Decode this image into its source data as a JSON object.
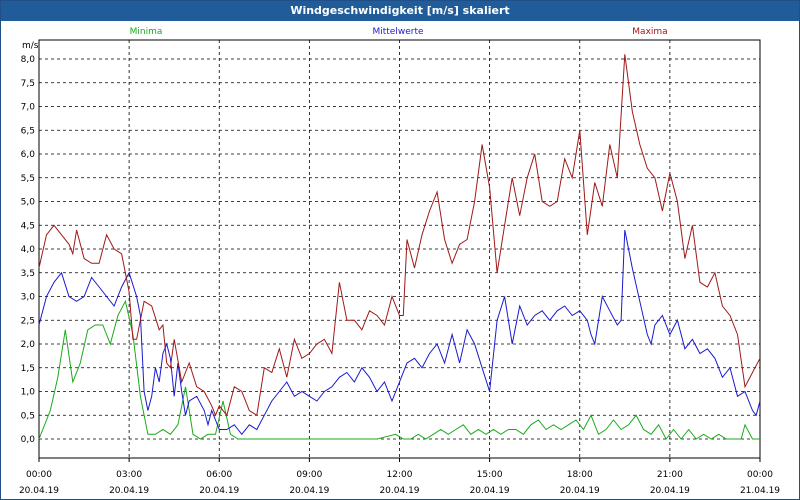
{
  "window": {
    "title": "Windgeschwindigkeit [m/s] skaliert"
  },
  "chart_data": {
    "type": "line",
    "title": "Windgeschwindigkeit [m/s] skaliert",
    "ylabel": "m/s",
    "ylim": [
      -0.4,
      8.4
    ],
    "xlim": [
      0,
      192
    ],
    "grid": true,
    "legend_placement": "top",
    "y_ticks": [
      "0,0",
      "0,5",
      "1,0",
      "1,5",
      "2,0",
      "2,5",
      "3,0",
      "3,5",
      "4,0",
      "4,5",
      "5,0",
      "5,5",
      "6,0",
      "6,5",
      "7,0",
      "7,5",
      "8,0"
    ],
    "x_ticks": [
      {
        "time": "00:00",
        "date": "20.04.19"
      },
      {
        "time": "03:00",
        "date": "20.04.19"
      },
      {
        "time": "06:00",
        "date": "20.04.19"
      },
      {
        "time": "09:00",
        "date": "20.04.19"
      },
      {
        "time": "12:00",
        "date": "20.04.19"
      },
      {
        "time": "15:00",
        "date": "20.04.19"
      },
      {
        "time": "18:00",
        "date": "20.04.19"
      },
      {
        "time": "21:00",
        "date": "20.04.19"
      },
      {
        "time": "00:00",
        "date": "21.04.19"
      }
    ],
    "series": [
      {
        "name": "Minima",
        "color": "#1aaa1a",
        "points": [
          [
            0,
            0.0
          ],
          [
            3,
            0.6
          ],
          [
            5,
            1.3
          ],
          [
            7,
            2.3
          ],
          [
            9,
            1.2
          ],
          [
            11,
            1.6
          ],
          [
            13,
            2.3
          ],
          [
            15,
            2.4
          ],
          [
            17,
            2.4
          ],
          [
            19,
            2.0
          ],
          [
            21,
            2.6
          ],
          [
            23,
            2.9
          ],
          [
            25,
            2.2
          ],
          [
            27,
            0.9
          ],
          [
            29,
            0.1
          ],
          [
            31,
            0.1
          ],
          [
            33,
            0.2
          ],
          [
            35,
            0.1
          ],
          [
            37,
            0.3
          ],
          [
            39,
            1.1
          ],
          [
            41,
            0.1
          ],
          [
            43,
            0.0
          ],
          [
            45,
            0.1
          ],
          [
            47,
            0.1
          ],
          [
            49,
            0.8
          ],
          [
            51,
            0.1
          ],
          [
            53,
            0.0
          ],
          [
            55,
            0.0
          ],
          [
            60,
            0.0
          ],
          [
            70,
            0.0
          ],
          [
            80,
            0.0
          ],
          [
            90,
            0.0
          ],
          [
            95,
            0.1
          ],
          [
            97,
            0.0
          ],
          [
            99,
            0.0
          ],
          [
            101,
            0.1
          ],
          [
            103,
            0.0
          ],
          [
            105,
            0.1
          ],
          [
            107,
            0.2
          ],
          [
            109,
            0.1
          ],
          [
            111,
            0.2
          ],
          [
            113,
            0.3
          ],
          [
            115,
            0.1
          ],
          [
            117,
            0.2
          ],
          [
            119,
            0.1
          ],
          [
            121,
            0.2
          ],
          [
            123,
            0.1
          ],
          [
            125,
            0.2
          ],
          [
            127,
            0.2
          ],
          [
            129,
            0.1
          ],
          [
            131,
            0.3
          ],
          [
            133,
            0.4
          ],
          [
            135,
            0.2
          ],
          [
            137,
            0.3
          ],
          [
            139,
            0.2
          ],
          [
            141,
            0.3
          ],
          [
            143,
            0.4
          ],
          [
            145,
            0.2
          ],
          [
            147,
            0.5
          ],
          [
            149,
            0.1
          ],
          [
            151,
            0.2
          ],
          [
            153,
            0.4
          ],
          [
            155,
            0.2
          ],
          [
            157,
            0.3
          ],
          [
            159,
            0.5
          ],
          [
            161,
            0.2
          ],
          [
            163,
            0.1
          ],
          [
            165,
            0.3
          ],
          [
            167,
            0.0
          ],
          [
            169,
            0.2
          ],
          [
            171,
            0.0
          ],
          [
            173,
            0.2
          ],
          [
            175,
            0.0
          ],
          [
            177,
            0.1
          ],
          [
            179,
            0.0
          ],
          [
            181,
            0.1
          ],
          [
            183,
            0.0
          ],
          [
            185,
            0.0
          ],
          [
            187,
            0.0
          ],
          [
            188,
            0.3
          ],
          [
            190,
            0.0
          ],
          [
            192,
            0.0
          ]
        ]
      },
      {
        "name": "Mittelwerte",
        "color": "#1a1ad0",
        "points": [
          [
            0,
            2.4
          ],
          [
            2,
            3.0
          ],
          [
            4,
            3.3
          ],
          [
            6,
            3.5
          ],
          [
            8,
            3.0
          ],
          [
            10,
            2.9
          ],
          [
            12,
            3.0
          ],
          [
            14,
            3.4
          ],
          [
            16,
            3.2
          ],
          [
            18,
            3.0
          ],
          [
            20,
            2.8
          ],
          [
            22,
            3.2
          ],
          [
            24,
            3.5
          ],
          [
            26,
            3.0
          ],
          [
            27,
            2.6
          ],
          [
            28,
            1.0
          ],
          [
            29,
            0.6
          ],
          [
            30,
            0.9
          ],
          [
            31,
            1.5
          ],
          [
            32,
            1.2
          ],
          [
            33,
            1.8
          ],
          [
            34,
            2.0
          ],
          [
            35,
            1.7
          ],
          [
            36,
            0.9
          ],
          [
            37,
            1.6
          ],
          [
            38,
            1.0
          ],
          [
            39,
            0.5
          ],
          [
            40,
            0.8
          ],
          [
            42,
            0.9
          ],
          [
            44,
            0.6
          ],
          [
            45,
            0.3
          ],
          [
            46,
            0.6
          ],
          [
            47,
            0.4
          ],
          [
            48,
            0.2
          ],
          [
            50,
            0.2
          ],
          [
            52,
            0.3
          ],
          [
            53,
            0.2
          ],
          [
            54,
            0.1
          ],
          [
            56,
            0.3
          ],
          [
            58,
            0.2
          ],
          [
            60,
            0.5
          ],
          [
            62,
            0.8
          ],
          [
            64,
            1.0
          ],
          [
            66,
            1.2
          ],
          [
            68,
            0.9
          ],
          [
            70,
            1.0
          ],
          [
            72,
            0.9
          ],
          [
            74,
            0.8
          ],
          [
            76,
            1.0
          ],
          [
            78,
            1.1
          ],
          [
            80,
            1.3
          ],
          [
            82,
            1.4
          ],
          [
            84,
            1.2
          ],
          [
            86,
            1.5
          ],
          [
            88,
            1.3
          ],
          [
            90,
            1.0
          ],
          [
            92,
            1.2
          ],
          [
            94,
            0.8
          ],
          [
            96,
            1.2
          ],
          [
            98,
            1.6
          ],
          [
            100,
            1.7
          ],
          [
            102,
            1.5
          ],
          [
            104,
            1.8
          ],
          [
            106,
            2.0
          ],
          [
            108,
            1.6
          ],
          [
            110,
            2.2
          ],
          [
            112,
            1.6
          ],
          [
            114,
            2.3
          ],
          [
            116,
            2.0
          ],
          [
            118,
            1.5
          ],
          [
            120,
            1.0
          ],
          [
            122,
            2.5
          ],
          [
            124,
            3.0
          ],
          [
            126,
            2.0
          ],
          [
            128,
            2.8
          ],
          [
            130,
            2.4
          ],
          [
            132,
            2.6
          ],
          [
            134,
            2.7
          ],
          [
            136,
            2.5
          ],
          [
            138,
            2.7
          ],
          [
            140,
            2.8
          ],
          [
            142,
            2.6
          ],
          [
            144,
            2.7
          ],
          [
            146,
            2.5
          ],
          [
            147,
            2.2
          ],
          [
            148,
            2.0
          ],
          [
            150,
            3.0
          ],
          [
            152,
            2.7
          ],
          [
            154,
            2.4
          ],
          [
            155,
            2.5
          ],
          [
            156,
            4.4
          ],
          [
            158,
            3.6
          ],
          [
            160,
            2.9
          ],
          [
            162,
            2.2
          ],
          [
            163,
            2.0
          ],
          [
            164,
            2.4
          ],
          [
            166,
            2.6
          ],
          [
            168,
            2.2
          ],
          [
            170,
            2.5
          ],
          [
            172,
            1.9
          ],
          [
            174,
            2.1
          ],
          [
            176,
            1.8
          ],
          [
            178,
            1.9
          ],
          [
            180,
            1.7
          ],
          [
            182,
            1.3
          ],
          [
            184,
            1.5
          ],
          [
            186,
            0.9
          ],
          [
            188,
            1.0
          ],
          [
            190,
            0.6
          ],
          [
            191,
            0.5
          ],
          [
            192,
            0.8
          ]
        ]
      },
      {
        "name": "Maxima",
        "color": "#a01818",
        "points": [
          [
            0,
            3.6
          ],
          [
            2,
            4.3
          ],
          [
            4,
            4.5
          ],
          [
            6,
            4.3
          ],
          [
            8,
            4.1
          ],
          [
            9,
            3.9
          ],
          [
            10,
            4.4
          ],
          [
            12,
            3.8
          ],
          [
            14,
            3.7
          ],
          [
            16,
            3.7
          ],
          [
            18,
            4.3
          ],
          [
            20,
            4.0
          ],
          [
            22,
            3.9
          ],
          [
            24,
            3.1
          ],
          [
            25,
            2.1
          ],
          [
            26,
            2.1
          ],
          [
            28,
            2.9
          ],
          [
            30,
            2.8
          ],
          [
            32,
            2.3
          ],
          [
            33,
            2.4
          ],
          [
            34,
            1.6
          ],
          [
            35,
            1.5
          ],
          [
            36,
            2.1
          ],
          [
            38,
            1.2
          ],
          [
            40,
            1.6
          ],
          [
            42,
            1.1
          ],
          [
            44,
            1.0
          ],
          [
            46,
            0.7
          ],
          [
            47,
            0.5
          ],
          [
            48,
            0.7
          ],
          [
            50,
            0.5
          ],
          [
            52,
            1.1
          ],
          [
            54,
            1.0
          ],
          [
            56,
            0.6
          ],
          [
            58,
            0.5
          ],
          [
            60,
            1.5
          ],
          [
            62,
            1.4
          ],
          [
            64,
            1.9
          ],
          [
            66,
            1.3
          ],
          [
            68,
            2.1
          ],
          [
            70,
            1.7
          ],
          [
            72,
            1.8
          ],
          [
            74,
            2.0
          ],
          [
            76,
            2.1
          ],
          [
            78,
            1.8
          ],
          [
            80,
            3.3
          ],
          [
            82,
            2.5
          ],
          [
            84,
            2.5
          ],
          [
            86,
            2.3
          ],
          [
            88,
            2.7
          ],
          [
            90,
            2.6
          ],
          [
            92,
            2.4
          ],
          [
            94,
            3.0
          ],
          [
            96,
            2.6
          ],
          [
            97,
            2.6
          ],
          [
            98,
            4.2
          ],
          [
            100,
            3.6
          ],
          [
            102,
            4.3
          ],
          [
            104,
            4.8
          ],
          [
            106,
            5.2
          ],
          [
            108,
            4.2
          ],
          [
            110,
            3.7
          ],
          [
            112,
            4.1
          ],
          [
            114,
            4.2
          ],
          [
            116,
            5.0
          ],
          [
            118,
            6.2
          ],
          [
            120,
            5.3
          ],
          [
            122,
            3.5
          ],
          [
            124,
            4.5
          ],
          [
            126,
            5.5
          ],
          [
            128,
            4.7
          ],
          [
            130,
            5.5
          ],
          [
            132,
            6.0
          ],
          [
            134,
            5.0
          ],
          [
            136,
            4.9
          ],
          [
            138,
            5.0
          ],
          [
            140,
            5.9
          ],
          [
            142,
            5.5
          ],
          [
            144,
            6.5
          ],
          [
            146,
            4.3
          ],
          [
            148,
            5.4
          ],
          [
            150,
            4.9
          ],
          [
            152,
            6.2
          ],
          [
            154,
            5.5
          ],
          [
            156,
            8.1
          ],
          [
            158,
            6.9
          ],
          [
            160,
            6.2
          ],
          [
            162,
            5.7
          ],
          [
            164,
            5.5
          ],
          [
            166,
            4.8
          ],
          [
            168,
            5.6
          ],
          [
            170,
            5.0
          ],
          [
            172,
            3.8
          ],
          [
            174,
            4.5
          ],
          [
            176,
            3.3
          ],
          [
            178,
            3.2
          ],
          [
            180,
            3.5
          ],
          [
            182,
            2.8
          ],
          [
            184,
            2.6
          ],
          [
            186,
            2.2
          ],
          [
            188,
            1.1
          ],
          [
            190,
            1.4
          ],
          [
            192,
            1.7
          ]
        ]
      }
    ]
  }
}
